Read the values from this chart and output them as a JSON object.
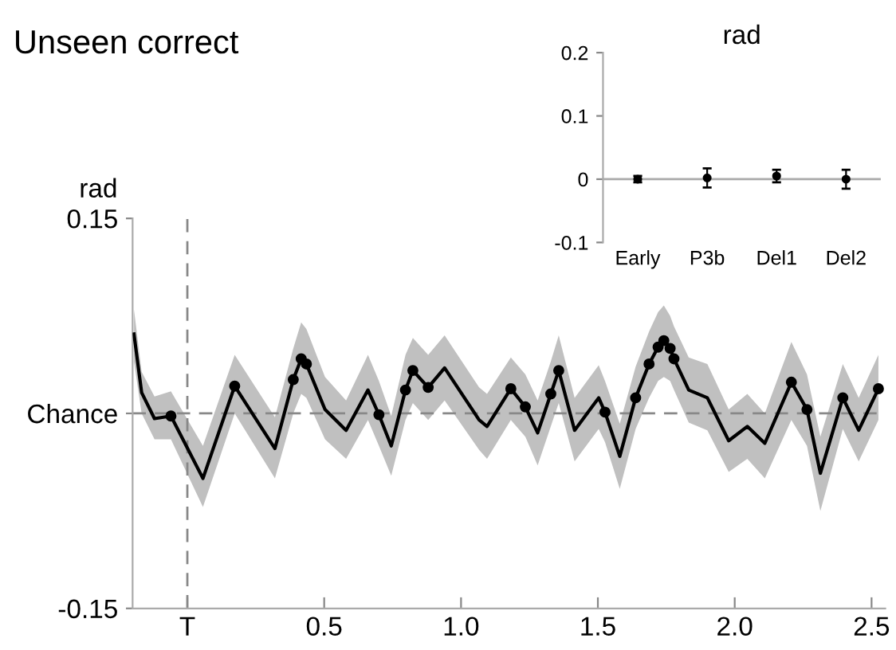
{
  "chart_data": [
    {
      "type": "line",
      "title": "Unseen correct",
      "ylabel": "rad",
      "xlim": [
        -0.2,
        2.55
      ],
      "ylim": [
        -0.15,
        0.15
      ],
      "xticks": [
        {
          "value": 0,
          "label": "T"
        },
        0.5,
        {
          "value": 1,
          "label": "1.0"
        },
        1.5,
        {
          "value": 2,
          "label": "2.0"
        },
        2.5
      ],
      "yticks": [
        -0.15,
        {
          "value": 0,
          "label": "Chance"
        },
        0.15
      ],
      "grid": false,
      "legend": false,
      "ref_lines": [
        {
          "axis": "x",
          "value": 0,
          "color": "#888888",
          "line_style": "dashed"
        },
        {
          "axis": "y",
          "value": 0,
          "color": "#888888",
          "line_style": "dashed"
        }
      ],
      "series": [
        {
          "type": "line",
          "color": "#000000",
          "marker": "none",
          "line_style": "solid",
          "x": [
            -0.195,
            -0.167,
            -0.12,
            -0.06,
            0.057,
            0.173,
            0.32,
            0.387,
            0.416,
            0.435,
            0.503,
            0.58,
            0.66,
            0.7,
            0.745,
            0.797,
            0.824,
            0.88,
            0.94,
            1.066,
            1.095,
            1.182,
            1.235,
            1.28,
            1.328,
            1.357,
            1.415,
            1.503,
            1.526,
            1.58,
            1.638,
            1.687,
            1.72,
            1.741,
            1.764,
            1.778,
            1.832,
            1.9,
            1.978,
            2.046,
            2.11,
            2.207,
            2.264,
            2.313,
            2.395,
            2.453,
            2.525
          ],
          "values": [
            0.061,
            0.016,
            -0.004,
            -0.002,
            -0.05,
            0.021,
            -0.027,
            0.026,
            0.042,
            0.038,
            0.003,
            -0.013,
            0.018,
            -0.001,
            -0.025,
            0.018,
            0.033,
            0.02,
            0.035,
            -0.005,
            -0.01,
            0.019,
            0.005,
            -0.015,
            0.015,
            0.033,
            -0.013,
            0.012,
            0.001,
            -0.033,
            0.012,
            0.038,
            0.051,
            0.056,
            0.05,
            0.042,
            0.018,
            0.012,
            -0.021,
            -0.01,
            -0.023,
            0.024,
            0.003,
            -0.046,
            0.012,
            -0.013,
            0.019
          ],
          "lower": [
            0.04,
            0.0,
            -0.02,
            -0.02,
            -0.072,
            0.0,
            -0.05,
            0.0,
            0.015,
            0.012,
            -0.02,
            -0.035,
            -0.005,
            -0.025,
            -0.048,
            -0.005,
            0.008,
            -0.005,
            0.01,
            -0.028,
            -0.035,
            -0.005,
            -0.018,
            -0.04,
            -0.01,
            0.008,
            -0.037,
            -0.012,
            -0.022,
            -0.058,
            -0.012,
            0.012,
            0.025,
            0.028,
            0.025,
            0.018,
            -0.007,
            -0.013,
            -0.045,
            -0.035,
            -0.05,
            -0.005,
            -0.025,
            -0.075,
            -0.012,
            -0.037,
            -0.005
          ],
          "upper": [
            0.08,
            0.032,
            0.013,
            0.017,
            -0.025,
            0.045,
            -0.003,
            0.05,
            0.07,
            0.065,
            0.028,
            0.01,
            0.045,
            0.025,
            -0.002,
            0.045,
            0.058,
            0.045,
            0.06,
            0.02,
            0.015,
            0.043,
            0.03,
            0.01,
            0.04,
            0.06,
            0.012,
            0.037,
            0.025,
            -0.008,
            0.036,
            0.063,
            0.078,
            0.083,
            0.075,
            0.067,
            0.043,
            0.038,
            0.003,
            0.015,
            0.0,
            0.055,
            0.03,
            -0.018,
            0.038,
            0.012,
            0.045
          ]
        },
        {
          "type": "scatter",
          "color": "#000000",
          "marker": "circle",
          "x": [
            -0.06,
            0.173,
            0.387,
            0.416,
            0.435,
            0.7,
            0.797,
            0.824,
            0.88,
            1.182,
            1.235,
            1.328,
            1.357,
            1.526,
            1.638,
            1.687,
            1.72,
            1.741,
            1.764,
            1.778,
            2.207,
            2.264,
            2.395,
            2.525
          ],
          "values": [
            -0.002,
            0.021,
            0.026,
            0.042,
            0.038,
            -0.001,
            0.018,
            0.033,
            0.02,
            0.019,
            0.005,
            0.015,
            0.033,
            0.001,
            0.012,
            0.038,
            0.051,
            0.056,
            0.05,
            0.042,
            0.024,
            0.003,
            0.012,
            0.019
          ]
        }
      ]
    },
    {
      "type": "scatter",
      "title": "rad",
      "categories": [
        "Early",
        "P3b",
        "Del1",
        "Del2"
      ],
      "ylim": [
        -0.1,
        0.2
      ],
      "yticks": [
        -0.1,
        0,
        0.1,
        0.2
      ],
      "grid": false,
      "legend": false,
      "ref_lines": [
        {
          "axis": "y",
          "value": 0,
          "color": "#aaaaaa",
          "line_style": "solid"
        }
      ],
      "series": [
        {
          "color": "#000000",
          "values": [
            0.0,
            0.002,
            0.005,
            0.0
          ],
          "errors": [
            0.005,
            0.015,
            0.01,
            0.015
          ]
        }
      ]
    }
  ]
}
